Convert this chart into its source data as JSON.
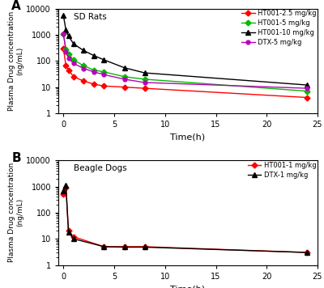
{
  "panel_A": {
    "title_text": "SD Rats",
    "time_points": [
      0,
      0.25,
      0.5,
      1,
      2,
      3,
      4,
      6,
      8,
      24
    ],
    "series": [
      {
        "label": "HT001-2.5 mg/kg",
        "color": "#ff0000",
        "marker": "D",
        "markersize": 3.5,
        "values": [
          300,
          65,
          45,
          25,
          17,
          13,
          11,
          10,
          9,
          4
        ]
      },
      {
        "label": "HT001-5 mg/kg",
        "color": "#00bb00",
        "marker": "D",
        "markersize": 3.5,
        "values": [
          1100,
          280,
          180,
          110,
          65,
          45,
          38,
          25,
          20,
          7
        ]
      },
      {
        "label": "HT001-10 mg/kg",
        "color": "#000000",
        "marker": "^",
        "markersize": 4,
        "values": [
          5500,
          1500,
          900,
          450,
          250,
          160,
          110,
          55,
          35,
          12
        ]
      },
      {
        "label": "DTX-5 mg/kg",
        "color": "#bb00bb",
        "marker": "o",
        "markersize": 3.5,
        "values": [
          1100,
          230,
          130,
          80,
          52,
          38,
          30,
          20,
          15,
          9
        ]
      }
    ],
    "ylabel": "Plasma Drug concentration\n(ng/mL)",
    "xlabel": "Time(h)",
    "ylim": [
      1,
      10000
    ],
    "xlim": [
      -0.5,
      25
    ],
    "xticks": [
      0,
      5,
      10,
      15,
      20,
      25
    ],
    "panel_label": "A"
  },
  "panel_B": {
    "title_text": "Beagle Dogs",
    "time_points": [
      0,
      0.25,
      0.5,
      1,
      4,
      6,
      8,
      24
    ],
    "series": [
      {
        "label": "HT001-1 mg/kg",
        "color": "#ff0000",
        "marker": "D",
        "markersize": 3.5,
        "values": [
          500,
          900,
          20,
          12,
          5,
          5,
          5,
          3
        ]
      },
      {
        "label": "DTX-1 mg/kg",
        "color": "#000000",
        "marker": "^",
        "markersize": 4,
        "values": [
          700,
          1100,
          18,
          10,
          5,
          4.8,
          4.8,
          3
        ]
      }
    ],
    "ylabel": "Plasma Drug concentration\n(ng/mL)",
    "xlabel": "Time(h)",
    "ylim": [
      1,
      10000
    ],
    "xlim": [
      -0.5,
      25
    ],
    "xticks": [
      0,
      5,
      10,
      15,
      20,
      25
    ],
    "panel_label": "B"
  },
  "figure": {
    "figsize": [
      4.0,
      3.56
    ],
    "dpi": 100,
    "bg_color": "#ffffff"
  }
}
